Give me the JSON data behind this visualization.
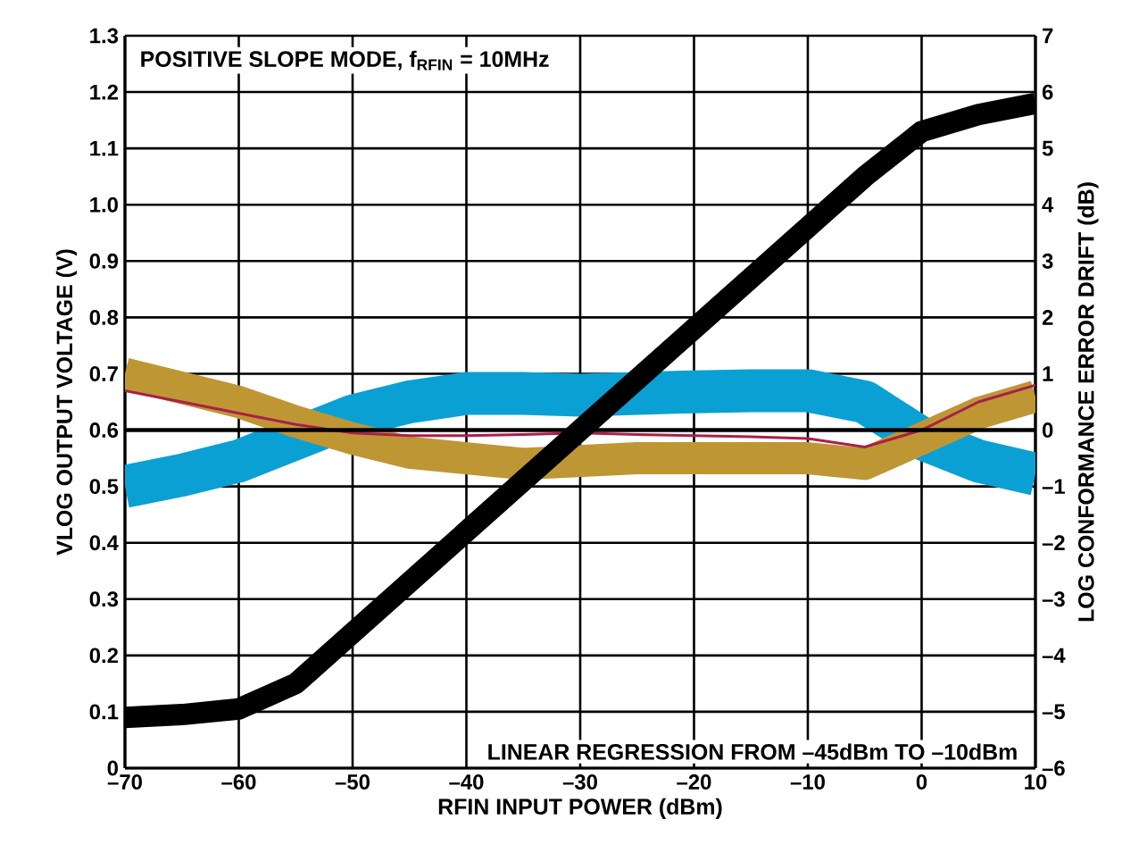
{
  "chart_data": {
    "type": "line",
    "xlabel": "RFIN INPUT POWER (dBm)",
    "ylabel": "VLOG OUTPUT VOLTAGE (V)",
    "y2label": "LOG CONFORMANCE ERROR DRIFT (dB)",
    "annotations": [
      "POSITIVE SLOPE MODE, f$_{RFIN}$ = 10MHz",
      "LINEAR REGRESSION FROM –45dBm TO –10dBm"
    ],
    "x": [
      -70,
      -65,
      -60,
      -55,
      -50,
      -45,
      -40,
      -35,
      -30,
      -25,
      -20,
      -15,
      -10,
      -5,
      0,
      5,
      10
    ],
    "series": [
      {
        "color": "#0aa0d4",
        "axis": "y2",
        "values": [
          -1.0,
          -0.8,
          -0.55,
          -0.15,
          0.25,
          0.5,
          0.65,
          0.65,
          0.62,
          0.65,
          0.68,
          0.7,
          0.7,
          0.5,
          -0.15,
          -0.55,
          -0.78
        ]
      },
      {
        "color": "#bf9634",
        "axis": "y2",
        "values": [
          1.0,
          0.75,
          0.5,
          0.15,
          -0.15,
          -0.4,
          -0.5,
          -0.6,
          -0.55,
          -0.5,
          -0.5,
          -0.5,
          -0.5,
          -0.6,
          -0.15,
          0.3,
          0.6
        ]
      },
      {
        "color": "#a8204a",
        "axis": "y2",
        "values": [
          0.7,
          0.5,
          0.3,
          0.1,
          -0.05,
          -0.1,
          -0.1,
          -0.08,
          -0.05,
          -0.08,
          -0.1,
          -0.12,
          -0.15,
          -0.3,
          0.0,
          0.5,
          0.8
        ]
      },
      {
        "color": "#000000",
        "values": [
          0.09,
          0.095,
          0.105,
          0.15,
          0.24,
          0.33,
          0.42,
          0.51,
          0.6,
          0.69,
          0.78,
          0.87,
          0.96,
          1.05,
          1.13,
          1.16,
          1.18
        ]
      }
    ],
    "xlim": [
      -70,
      10
    ],
    "ylim": [
      0,
      1.3
    ],
    "y2lim": [
      -6,
      7
    ],
    "xticks": [
      {
        "value": -70,
        "label": "–70"
      },
      {
        "value": -60,
        "label": "–60"
      },
      {
        "value": -50,
        "label": "–50"
      },
      {
        "value": -40,
        "label": "–40"
      },
      {
        "value": -30,
        "label": "–30"
      },
      {
        "value": -20,
        "label": "–20"
      },
      {
        "value": -10,
        "label": "–10"
      },
      0,
      10
    ],
    "yticks": [
      0,
      0.1,
      0.2,
      0.3,
      0.4,
      0.5,
      0.6,
      0.7,
      0.8,
      0.9,
      {
        "value": 1.0,
        "label": "1.0"
      },
      1.1,
      1.2,
      1.3
    ],
    "y2ticks": [
      {
        "value": -6,
        "label": "–6"
      },
      {
        "value": -5,
        "label": "–5"
      },
      {
        "value": -4,
        "label": "–4"
      },
      {
        "value": -3,
        "label": "–3"
      },
      {
        "value": -2,
        "label": "–2"
      },
      {
        "value": -1,
        "label": "–1"
      },
      0,
      1,
      2,
      3,
      4,
      5,
      6,
      7
    ],
    "ref_lines": [
      {
        "axis": "y2",
        "value": 0,
        "color": "#000000"
      }
    ],
    "grid": true
  }
}
